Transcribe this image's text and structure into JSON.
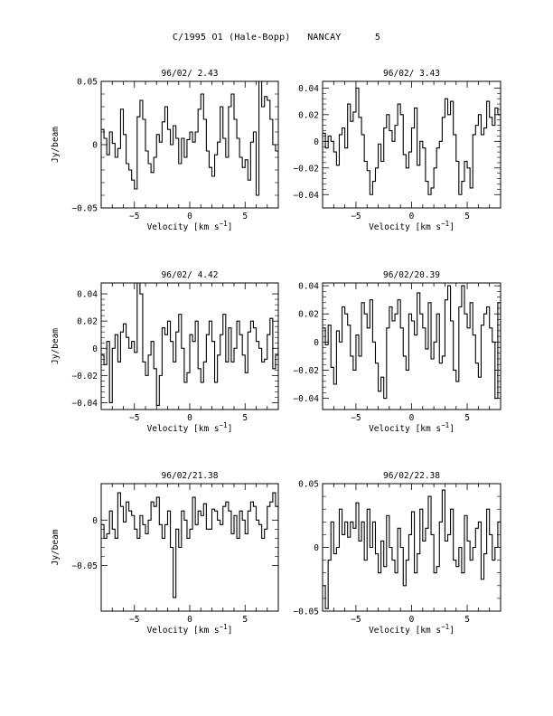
{
  "page": {
    "title": "C/1995 O1 (Hale-Bopp)   NANCAY      5"
  },
  "chart_data": [
    {
      "type": "line",
      "title": "96/02/ 2.43",
      "xlabel": "Velocity [km s^-1]",
      "ylabel": "Jy/beam",
      "xlim": [
        -8,
        8
      ],
      "ylim": [
        -0.05,
        0.05
      ],
      "xticks": [
        -5,
        0,
        5
      ],
      "yticks": [
        -0.05,
        0,
        0.05
      ],
      "ytick_labels": [
        "-0.05",
        "0",
        "0.05"
      ],
      "step": true,
      "series": [
        {
          "x_start": -8,
          "x_step": 0.25,
          "values": [
            0.012,
            0.005,
            -0.008,
            0.01,
            0.001,
            -0.01,
            -0.003,
            0.028,
            0.008,
            -0.015,
            -0.02,
            -0.028,
            -0.035,
            0.022,
            0.035,
            0.02,
            -0.005,
            -0.015,
            -0.022,
            -0.01,
            0.008,
            0.002,
            0.018,
            0.03,
            0.012,
            0.0,
            0.015,
            0.005,
            -0.015,
            0.005,
            -0.01,
            0.004,
            0.01,
            0.002,
            0.01,
            0.028,
            0.04,
            0.02,
            -0.005,
            -0.018,
            -0.025,
            -0.008,
            0.002,
            0.03,
            0.005,
            -0.01,
            0.03,
            0.04,
            0.02,
            0.005,
            -0.01,
            -0.018,
            -0.012,
            -0.028,
            0.002,
            0.01,
            -0.04,
            0.052,
            0.03,
            0.038,
            0.035,
            0.02,
            0.0,
            -0.005,
            -0.015,
            0.028
          ]
        }
      ]
    },
    {
      "type": "line",
      "title": "96/02/ 3.43",
      "xlabel": "Velocity [km s^-1]",
      "ylabel": "",
      "xlim": [
        -8,
        8
      ],
      "ylim": [
        -0.05,
        0.045
      ],
      "xticks": [
        -5,
        0,
        5
      ],
      "yticks": [
        -0.04,
        -0.02,
        0,
        0.02,
        0.04
      ],
      "ytick_labels": [
        "-0.04",
        "-0.02",
        "0",
        "0.02",
        "0.04"
      ],
      "step": true,
      "series": [
        {
          "x_start": -8,
          "x_step": 0.25,
          "values": [
            0.006,
            -0.005,
            0.004,
            0.0,
            -0.008,
            -0.018,
            0.005,
            0.01,
            -0.005,
            0.028,
            0.015,
            0.022,
            0.04,
            0.018,
            0.005,
            -0.015,
            -0.022,
            -0.04,
            -0.03,
            -0.02,
            -0.002,
            -0.015,
            0.01,
            0.02,
            0.008,
            0.0,
            0.012,
            0.028,
            0.02,
            -0.01,
            -0.02,
            -0.008,
            0.01,
            0.025,
            -0.018,
            0.0,
            -0.005,
            -0.03,
            -0.04,
            -0.035,
            -0.02,
            -0.005,
            0.0,
            0.018,
            0.032,
            0.02,
            0.03,
            0.005,
            -0.015,
            -0.04,
            -0.03,
            -0.015,
            -0.02,
            -0.035,
            0.005,
            0.012,
            0.02,
            0.005,
            0.01,
            0.03,
            0.018,
            0.012,
            0.025,
            0.02,
            0.01,
            0.002
          ]
        }
      ]
    },
    {
      "type": "line",
      "title": "96/02/ 4.42",
      "xlabel": "Velocity [km s^-1]",
      "ylabel": "Jy/beam",
      "xlim": [
        -8,
        8
      ],
      "ylim": [
        -0.045,
        0.048
      ],
      "xticks": [
        -5,
        0,
        5
      ],
      "yticks": [
        -0.04,
        -0.02,
        0,
        0.02,
        0.04
      ],
      "ytick_labels": [
        "-0.04",
        "-0.02",
        "0",
        "0.02",
        "0.04"
      ],
      "step": true,
      "series": [
        {
          "x_start": -8,
          "x_step": 0.25,
          "values": [
            -0.005,
            -0.012,
            0.005,
            -0.04,
            0.0,
            0.01,
            -0.01,
            0.012,
            0.018,
            0.008,
            0.0,
            0.005,
            -0.003,
            0.048,
            0.04,
            -0.01,
            -0.02,
            -0.005,
            0.005,
            -0.015,
            -0.042,
            -0.02,
            0.015,
            0.01,
            0.02,
            0.005,
            -0.01,
            0.012,
            0.025,
            0.0,
            -0.025,
            -0.018,
            0.01,
            0.005,
            0.02,
            -0.015,
            -0.025,
            -0.01,
            0.01,
            0.02,
            0.005,
            -0.025,
            -0.005,
            0.01,
            0.025,
            -0.01,
            0.015,
            -0.01,
            0.0,
            0.02,
            0.01,
            -0.005,
            -0.018,
            0.012,
            0.02,
            0.015,
            0.005,
            0.0,
            -0.01,
            -0.008,
            0.01,
            0.022,
            -0.015,
            -0.005,
            0.02,
            0.025
          ]
        }
      ]
    },
    {
      "type": "line",
      "title": "96/02/20.39",
      "xlabel": "Velocity [km s^-1]",
      "ylabel": "",
      "xlim": [
        -8,
        8
      ],
      "ylim": [
        -0.048,
        0.042
      ],
      "xticks": [
        -5,
        0,
        5
      ],
      "yticks": [
        -0.04,
        -0.02,
        0,
        0.02,
        0.04
      ],
      "ytick_labels": [
        "-0.04",
        "-0.02",
        "0",
        "0.02",
        "0.04"
      ],
      "step": true,
      "series": [
        {
          "x_start": -8,
          "x_step": 0.25,
          "values": [
            0.01,
            -0.002,
            0.012,
            -0.018,
            -0.03,
            0.008,
            0.0,
            0.025,
            0.02,
            0.012,
            -0.01,
            -0.02,
            0.005,
            -0.01,
            0.028,
            0.02,
            0.01,
            0.03,
            0.0,
            -0.015,
            -0.035,
            -0.025,
            -0.04,
            0.01,
            0.025,
            0.015,
            0.02,
            0.03,
            0.01,
            -0.01,
            -0.02,
            0.02,
            0.015,
            0.005,
            0.035,
            0.02,
            0.01,
            -0.005,
            0.028,
            -0.012,
            0.0,
            0.02,
            -0.015,
            -0.01,
            0.03,
            0.04,
            0.015,
            -0.02,
            -0.028,
            0.025,
            0.04,
            0.02,
            0.01,
            0.028,
            0.005,
            -0.015,
            -0.025,
            0.012,
            0.02,
            0.025,
            0.01,
            0.0,
            -0.04,
            0.028,
            0.005,
            0.015
          ]
        }
      ]
    },
    {
      "type": "line",
      "title": "96/02/21.38",
      "xlabel": "Velocity [km s^-1]",
      "ylabel": "Jy/beam",
      "xlim": [
        -8,
        8
      ],
      "ylim": [
        -0.1,
        0.04
      ],
      "xticks": [
        -5,
        0,
        5
      ],
      "yticks": [
        -0.05,
        0
      ],
      "ytick_labels": [
        "-0.05",
        "0"
      ],
      "step": true,
      "series": [
        {
          "x_start": -8,
          "x_step": 0.25,
          "values": [
            -0.005,
            -0.02,
            -0.015,
            0.01,
            -0.01,
            -0.02,
            0.03,
            0.015,
            -0.002,
            0.02,
            0.01,
            0.005,
            -0.01,
            -0.02,
            0.005,
            -0.005,
            -0.015,
            0.0,
            0.02,
            0.015,
            0.025,
            -0.005,
            -0.02,
            -0.005,
            0.01,
            -0.03,
            -0.085,
            -0.01,
            -0.03,
            0.01,
            0.0,
            -0.02,
            -0.01,
            0.025,
            -0.005,
            0.01,
            0.005,
            0.018,
            -0.01,
            -0.01,
            0.012,
            0.01,
            0.0,
            -0.005,
            0.015,
            0.02,
            0.01,
            -0.015,
            0.005,
            -0.02,
            0.01,
            0.0,
            -0.015,
            0.01,
            0.02,
            0.015,
            0.0,
            -0.005,
            -0.02,
            -0.01,
            0.015,
            0.02,
            0.03,
            0.015,
            -0.005,
            0.01
          ]
        }
      ]
    },
    {
      "type": "line",
      "title": "96/02/22.38",
      "xlabel": "Velocity [km s^-1]",
      "ylabel": "",
      "xlim": [
        -8,
        8
      ],
      "ylim": [
        -0.05,
        0.05
      ],
      "xticks": [
        -5,
        0,
        5
      ],
      "yticks": [
        -0.05,
        0,
        0.05
      ],
      "ytick_labels": [
        "-0.05",
        "0",
        "0.05"
      ],
      "step": true,
      "series": [
        {
          "x_start": -8,
          "x_step": 0.25,
          "values": [
            -0.03,
            -0.048,
            -0.01,
            0.02,
            -0.005,
            0.0,
            0.03,
            0.01,
            0.02,
            0.008,
            0.02,
            0.015,
            0.035,
            0.005,
            0.02,
            -0.01,
            0.03,
            0.0,
            0.02,
            -0.005,
            -0.02,
            0.005,
            -0.015,
            0.025,
            0.0,
            -0.01,
            -0.02,
            0.015,
            0.0,
            -0.03,
            -0.01,
            0.01,
            0.028,
            -0.02,
            -0.005,
            0.03,
            0.005,
            0.015,
            0.04,
            0.01,
            -0.02,
            -0.015,
            0.02,
            0.045,
            0.005,
            0.01,
            0.03,
            -0.01,
            -0.015,
            0.0,
            -0.02,
            0.025,
            0.005,
            -0.01,
            0.0,
            0.015,
            0.02,
            -0.025,
            -0.005,
            0.03,
            0.01,
            -0.01,
            0.0,
            0.02,
            0.01,
            0.022
          ]
        }
      ]
    }
  ]
}
